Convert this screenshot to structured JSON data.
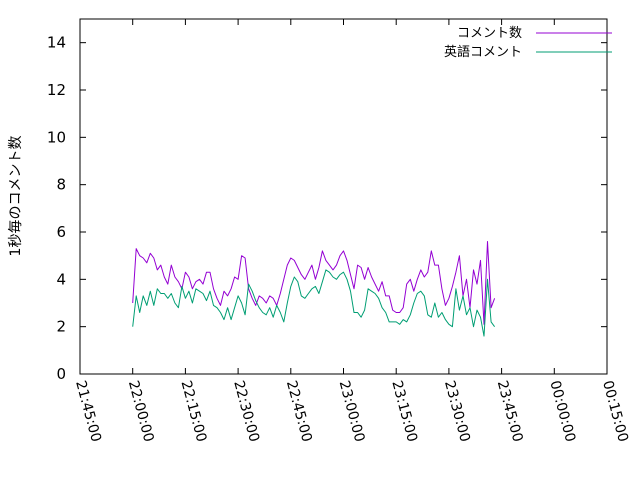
{
  "chart_data": {
    "type": "line",
    "title": "",
    "xlabel": "",
    "ylabel": "1秒毎のコメント数",
    "xlim": [
      "21:45:00",
      "00:15:00"
    ],
    "ylim": [
      0,
      15
    ],
    "x_ticks": [
      "21:45:00",
      "22:00:00",
      "22:15:00",
      "22:30:00",
      "22:45:00",
      "23:00:00",
      "23:15:00",
      "23:30:00",
      "23:45:00",
      "00:00:00",
      "00:15:00"
    ],
    "y_ticks": [
      "0",
      "2",
      "4",
      "6",
      "8",
      "10",
      "12",
      "14"
    ],
    "grid": false,
    "legend_position": "top-right",
    "x_step_seconds": 60,
    "series": [
      {
        "name": "コメント数",
        "color": "#9400d3",
        "start": "22:00:00",
        "values": [
          3.0,
          5.3,
          5.0,
          4.9,
          4.7,
          5.1,
          4.9,
          4.4,
          4.6,
          4.1,
          3.8,
          4.6,
          4.1,
          3.9,
          3.6,
          4.3,
          4.1,
          3.6,
          3.9,
          4.0,
          3.8,
          4.3,
          4.3,
          3.6,
          3.2,
          2.9,
          3.5,
          3.3,
          3.6,
          4.1,
          4.0,
          5.0,
          4.9,
          3.6,
          3.2,
          2.9,
          3.3,
          3.2,
          3.0,
          3.3,
          3.2,
          2.9,
          3.4,
          4.0,
          4.6,
          4.9,
          4.8,
          4.5,
          4.2,
          4.0,
          4.3,
          4.6,
          4.0,
          4.5,
          5.2,
          4.8,
          4.6,
          4.4,
          4.6,
          5.0,
          5.2,
          4.8,
          4.2,
          3.6,
          4.6,
          4.5,
          4.0,
          4.5,
          4.1,
          3.8,
          3.5,
          3.9,
          3.3,
          3.3,
          2.7,
          2.6,
          2.6,
          2.8,
          3.8,
          4.0,
          3.5,
          4.0,
          4.4,
          4.1,
          4.3,
          5.2,
          4.6,
          4.6,
          3.6,
          2.9,
          3.2,
          3.7,
          4.3,
          5.0,
          3.3,
          4.0,
          2.8,
          4.4,
          3.8,
          4.8,
          2.1,
          5.6,
          2.8,
          3.2
        ],
        "extra_points": [],
        "stroke_width": 1
      },
      {
        "name": "英語コメント",
        "color": "#009e73",
        "start": "22:00:00",
        "values": [
          2.0,
          3.3,
          2.6,
          3.3,
          2.9,
          3.5,
          2.9,
          3.6,
          3.4,
          3.4,
          3.2,
          3.4,
          3.0,
          2.8,
          3.7,
          3.2,
          3.5,
          3.0,
          3.6,
          3.5,
          3.4,
          3.1,
          3.5,
          2.9,
          2.8,
          2.6,
          2.3,
          2.8,
          2.3,
          2.8,
          3.3,
          3.0,
          2.5,
          3.8,
          3.5,
          3.1,
          2.8,
          2.6,
          2.5,
          2.8,
          2.4,
          2.9,
          2.6,
          2.2,
          3.0,
          3.7,
          4.1,
          3.9,
          3.3,
          3.2,
          3.4,
          3.6,
          3.7,
          3.4,
          3.9,
          4.4,
          4.3,
          4.1,
          4.0,
          4.2,
          4.3,
          4.0,
          3.5,
          2.6,
          2.6,
          2.4,
          2.7,
          3.6,
          3.5,
          3.4,
          3.2,
          2.8,
          2.6,
          2.2,
          2.2,
          2.2,
          2.1,
          2.3,
          2.2,
          2.5,
          3.0,
          3.4,
          3.5,
          3.3,
          2.5,
          2.4,
          3.0,
          2.4,
          2.6,
          2.3,
          2.1,
          2.0,
          3.6,
          2.7,
          3.3,
          2.5,
          2.8,
          2.0,
          2.7,
          2.4,
          1.6,
          4.0,
          2.2,
          2.0
        ],
        "stroke_width": 1
      }
    ]
  }
}
